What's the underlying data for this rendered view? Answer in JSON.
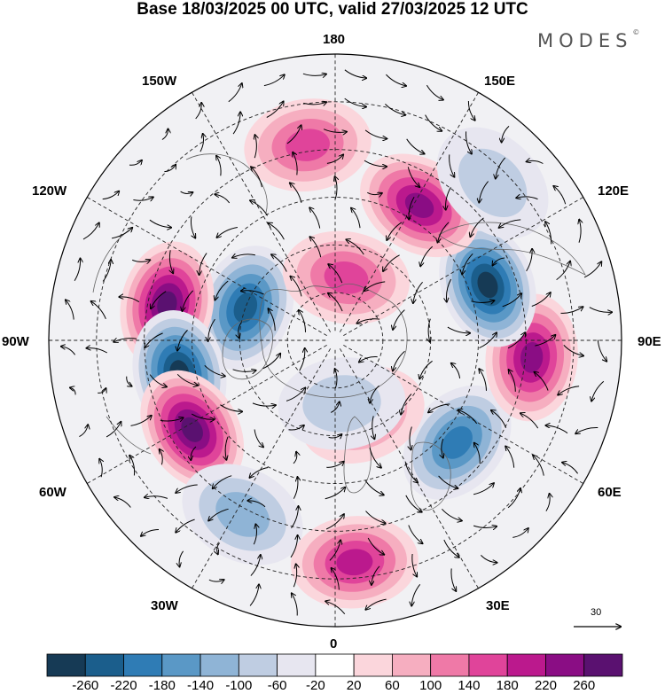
{
  "title": "Base 18/03/2025 00 UTC, valid 27/03/2025 12 UTC",
  "brand": {
    "name": "MODES",
    "mark": "©"
  },
  "longitude_labels": {
    "n180": "180",
    "e150": "150E",
    "e120": "120E",
    "e90": "90E",
    "e60": "60E",
    "e30": "30E",
    "s0": "0",
    "w30": "30W",
    "w60": "60W",
    "w90": "90W",
    "w120": "120W",
    "w150": "150W"
  },
  "reference_vector": {
    "label": "30"
  },
  "colorbar": {
    "labels": [
      "-260",
      "-220",
      "-180",
      "-140",
      "-100",
      "-60",
      "-20",
      "20",
      "60",
      "100",
      "140",
      "180",
      "220",
      "260"
    ],
    "colors": [
      "#163a55",
      "#1b5e8c",
      "#2f7cb5",
      "#5a98c6",
      "#8fb4d6",
      "#bfcde2",
      "#e7e6f0",
      "#ffffff",
      "#fbd6dc",
      "#f6aec0",
      "#ef79a7",
      "#e0449a",
      "#bb198d",
      "#8a0d84",
      "#5a1170"
    ]
  },
  "anomalies": [
    {
      "sign": "neg",
      "level": 6,
      "lon": -110,
      "colat": 30
    },
    {
      "sign": "pos",
      "level": 7,
      "lon": -102,
      "colat": 54
    },
    {
      "sign": "neg",
      "level": 7,
      "lon": -78,
      "colat": 50
    },
    {
      "sign": "pos",
      "level": 7,
      "lon": -58,
      "colat": 53
    },
    {
      "sign": "neg",
      "level": 3,
      "lon": -28,
      "colat": 62
    },
    {
      "sign": "pos",
      "level": 5,
      "lon": 5,
      "colat": 70
    },
    {
      "sign": "neg",
      "level": 5,
      "lon": 50,
      "colat": 50
    },
    {
      "sign": "pos",
      "level": 3,
      "lon": 20,
      "colat": 25
    },
    {
      "sign": "neg",
      "level": 2,
      "lon": 6,
      "colat": 20
    },
    {
      "sign": "pos",
      "level": 6,
      "lon": 85,
      "colat": 62
    },
    {
      "sign": "neg",
      "level": 7,
      "lon": 110,
      "colat": 51
    },
    {
      "sign": "pos",
      "level": 6,
      "lon": 148,
      "colat": 50
    },
    {
      "sign": "pos",
      "level": 4,
      "lon": 170,
      "colat": 20
    },
    {
      "sign": "pos",
      "level": 4,
      "lon": -172,
      "colat": 62
    },
    {
      "sign": "neg",
      "level": 2,
      "lon": 135,
      "colat": 70
    }
  ]
}
